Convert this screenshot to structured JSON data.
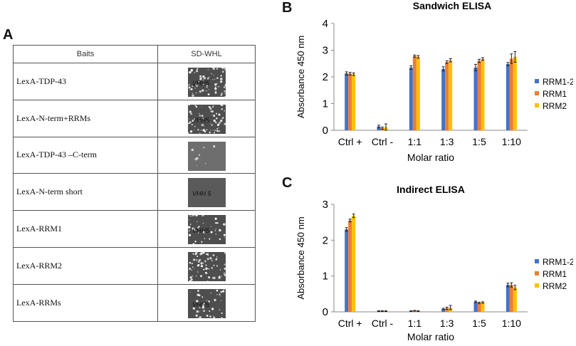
{
  "panel_a": {
    "letter": "A",
    "headers": {
      "baits": "Baits",
      "medium": "SD-WHL"
    },
    "rows": [
      {
        "bait": "LexA-TDP-43",
        "plate_label": "VHH5",
        "growth": "high"
      },
      {
        "bait": "LexA-N-term+RRMs",
        "plate_label": "VHH5",
        "growth": "high"
      },
      {
        "bait": "LexA-TDP-43 –C-term",
        "plate_label": "",
        "growth": "low"
      },
      {
        "bait": "LexA-N-term short",
        "plate_label": "VHH 5",
        "growth": "none"
      },
      {
        "bait": "LexA-RRM1",
        "plate_label": "VHH5",
        "growth": "medium"
      },
      {
        "bait": "LexA-RRM2",
        "plate_label": "",
        "growth": "high"
      },
      {
        "bait": "LexA-RRMs",
        "plate_label": "VHH5",
        "growth": "medium"
      }
    ]
  },
  "panel_b": {
    "letter": "B"
  },
  "panel_c": {
    "letter": "C"
  },
  "chart_data": [
    {
      "type": "bar",
      "title": "Sandwich  ELISA",
      "xlabel": "Molar ratio",
      "ylabel": "Absorbance  450 nm",
      "ylim": [
        0,
        4
      ],
      "yticks": [
        0,
        1,
        2,
        3,
        4
      ],
      "legend_position": "right",
      "categories": [
        "Ctrl +",
        "Ctrl -",
        "1:1",
        "1:3",
        "1:5",
        "1:10"
      ],
      "series": [
        {
          "name": "RRM1-2",
          "color": "#4472C4",
          "values": [
            2.13,
            0.14,
            2.35,
            2.3,
            2.35,
            2.48
          ],
          "errors": [
            0.06,
            0.05,
            0.07,
            0.08,
            0.12,
            0.06
          ]
        },
        {
          "name": "RRM1",
          "color": "#ED7D31",
          "values": [
            2.12,
            0.08,
            2.78,
            2.55,
            2.6,
            2.68
          ],
          "errors": [
            0.05,
            0.04,
            0.04,
            0.05,
            0.06,
            0.18
          ]
        },
        {
          "name": "RRM2",
          "color": "#FFC000",
          "values": [
            2.1,
            0.12,
            2.75,
            2.62,
            2.67,
            2.75
          ],
          "errors": [
            0.05,
            0.12,
            0.05,
            0.06,
            0.05,
            0.2
          ]
        }
      ]
    },
    {
      "type": "bar",
      "title": "Indirect  ELISA",
      "xlabel": "Molar ratio",
      "ylabel": "Absorbance  450 nm",
      "ylim": [
        0,
        3
      ],
      "yticks": [
        0,
        1,
        2,
        3
      ],
      "legend_position": "right",
      "categories": [
        "Ctrl +",
        "Ctrl -",
        "1:1",
        "1:3",
        "1:5",
        "1:10"
      ],
      "series": [
        {
          "name": "RRM1-2",
          "color": "#4472C4",
          "values": [
            2.3,
            0.02,
            0.02,
            0.08,
            0.28,
            0.75
          ],
          "errors": [
            0.05,
            0.01,
            0.01,
            0.02,
            0.02,
            0.05
          ]
        },
        {
          "name": "RRM1",
          "color": "#ED7D31",
          "values": [
            2.55,
            0.02,
            0.03,
            0.1,
            0.25,
            0.75
          ],
          "errors": [
            0.04,
            0.01,
            0.01,
            0.03,
            0.02,
            0.06
          ]
        },
        {
          "name": "RRM2",
          "color": "#FFC000",
          "values": [
            2.68,
            0.02,
            0.02,
            0.12,
            0.26,
            0.68
          ],
          "errors": [
            0.05,
            0.01,
            0.01,
            0.06,
            0.02,
            0.06
          ]
        }
      ]
    }
  ]
}
